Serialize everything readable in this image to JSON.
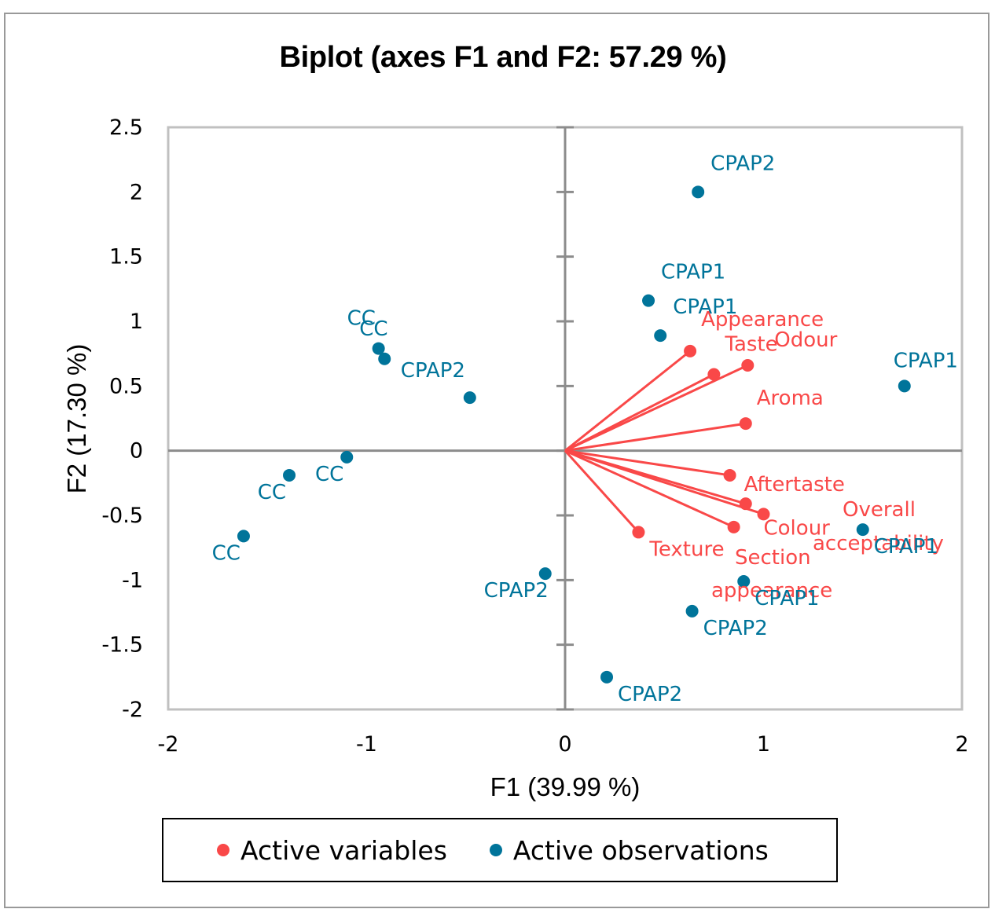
{
  "chart_data": {
    "type": "scatter",
    "subtype": "biplot",
    "title": "Biplot (axes F1 and F2: 57.29 %)",
    "xlabel": "F1 (39.99 %)",
    "ylabel": "F2 (17.30 %)",
    "xlim": [
      -2,
      2
    ],
    "ylim": [
      -2,
      2.5
    ],
    "x_ticks": [
      -2,
      -1,
      0,
      1,
      2
    ],
    "x_tick_labels": [
      "-2",
      "-1",
      "0",
      "1",
      "2"
    ],
    "y_ticks": [
      2.5,
      2,
      1.5,
      1,
      0.5,
      0,
      -0.5,
      -1,
      -1.5,
      -2
    ],
    "y_tick_labels": [
      "2.5",
      "2",
      "1.5",
      "1",
      "0.5",
      "0",
      "-0.5",
      "-1",
      "-1.5",
      "-2"
    ],
    "grid": false,
    "legend_position": "bottom",
    "legend": [
      {
        "label": "Active variables",
        "color": "#f94848"
      },
      {
        "label": "Active observations",
        "color": "#00749a"
      }
    ],
    "series": [
      {
        "name": "Active variables",
        "color": "#f94848",
        "style": "vectors-from-origin",
        "points": [
          {
            "label": "Appearance",
            "x": 0.63,
            "y": 0.77
          },
          {
            "label": "Taste",
            "x": 0.75,
            "y": 0.59
          },
          {
            "label": "Odour",
            "x": 0.92,
            "y": 0.66
          },
          {
            "label": "Aroma",
            "x": 0.91,
            "y": 0.21
          },
          {
            "label": "Aftertaste",
            "x": 0.83,
            "y": -0.19
          },
          {
            "label": "Overall acceptability",
            "x": 0.91,
            "y": -0.41
          },
          {
            "label": "Colour",
            "x": 1.0,
            "y": -0.49
          },
          {
            "label": "Section appearance",
            "x": 0.85,
            "y": -0.59
          },
          {
            "label": "Texture",
            "x": 0.37,
            "y": -0.63
          }
        ]
      },
      {
        "name": "Active observations",
        "color": "#00749a",
        "style": "points",
        "points": [
          {
            "label": "CC",
            "x": -0.94,
            "y": 0.79
          },
          {
            "label": "CC",
            "x": -0.91,
            "y": 0.71
          },
          {
            "label": "CPAP2",
            "x": -0.48,
            "y": 0.41
          },
          {
            "label": "CC",
            "x": -1.1,
            "y": -0.05
          },
          {
            "label": "CC",
            "x": -1.39,
            "y": -0.19
          },
          {
            "label": "CC",
            "x": -1.62,
            "y": -0.66
          },
          {
            "label": "CPAP2",
            "x": 0.67,
            "y": 2.0
          },
          {
            "label": "CPAP1",
            "x": 0.42,
            "y": 1.16
          },
          {
            "label": "CPAP1",
            "x": 0.48,
            "y": 0.89
          },
          {
            "label": "CPAP1",
            "x": 1.71,
            "y": 0.5
          },
          {
            "label": "CPAP1",
            "x": 1.5,
            "y": -0.61
          },
          {
            "label": "CPAP1",
            "x": 0.9,
            "y": -1.01
          },
          {
            "label": "CPAP2",
            "x": 0.64,
            "y": -1.24
          },
          {
            "label": "CPAP2",
            "x": -0.1,
            "y": -0.95
          },
          {
            "label": "CPAP2",
            "x": 0.21,
            "y": -1.75
          }
        ]
      }
    ]
  }
}
